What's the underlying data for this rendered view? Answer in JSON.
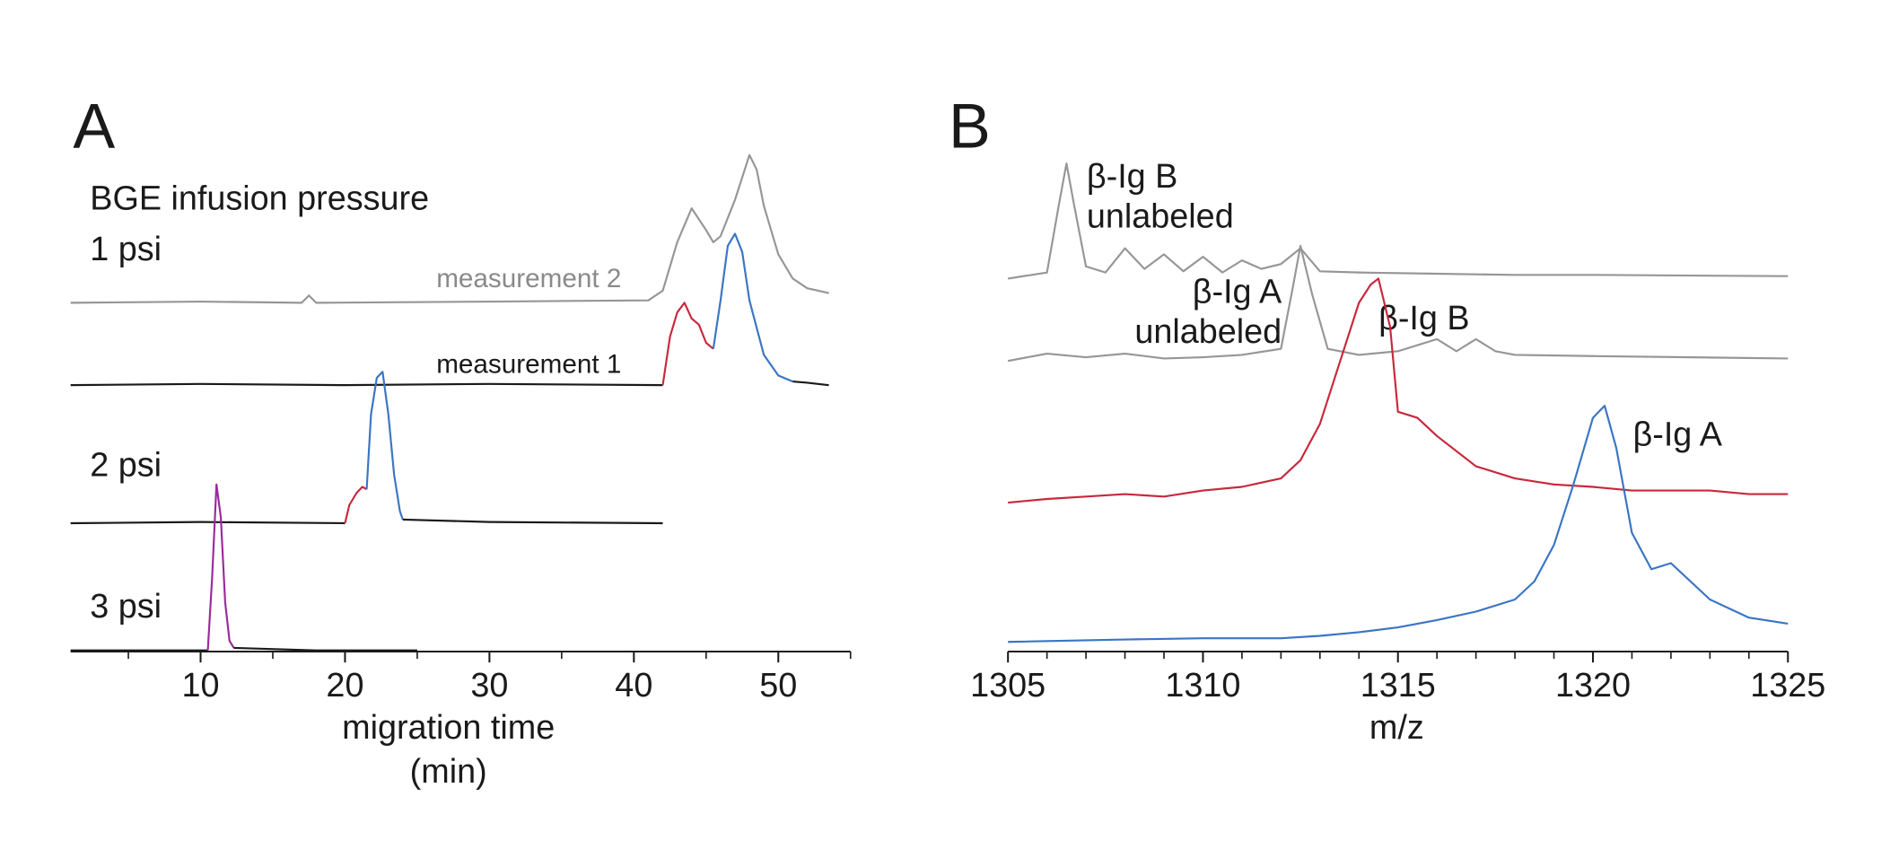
{
  "chart_data": [
    {
      "type": "line",
      "panel": "A",
      "xlabel": [
        "migration time",
        "(min)"
      ],
      "xlim": [
        1,
        55
      ],
      "xticks": [
        10,
        20,
        30,
        40,
        50
      ],
      "xminorticks": [
        5,
        15,
        25,
        35,
        45,
        55
      ],
      "annotations": [
        "BGE infusion pressure",
        "1 psi",
        "2 psi",
        "3 psi"
      ],
      "series": [
        {
          "name": "measurement 2",
          "color": "#969696",
          "x": [
            1,
            10,
            17,
            17.5,
            18,
            30,
            41,
            42,
            43,
            44,
            45,
            45.5,
            46,
            47,
            48,
            48.5,
            49,
            50,
            51,
            52,
            53.5
          ],
          "values": [
            0,
            1,
            0,
            6,
            0,
            1,
            2,
            10,
            50,
            78,
            60,
            50,
            55,
            85,
            122,
            110,
            80,
            40,
            20,
            12,
            8
          ]
        },
        {
          "name": "measurement 1",
          "color": "#1a1a1a",
          "x": [
            1,
            10,
            20,
            30,
            42
          ],
          "values": [
            0,
            1,
            0,
            1,
            0
          ]
        },
        {
          "color": "#c8283c",
          "x": [
            42,
            42.5,
            43,
            43.5,
            44,
            44.5,
            45,
            45.5
          ],
          "values": [
            0,
            40,
            60,
            68,
            55,
            50,
            35,
            30
          ]
        },
        {
          "color": "#3a75c4",
          "x": [
            45.5,
            46,
            46.5,
            47,
            47.5,
            48,
            49,
            50,
            51
          ],
          "values": [
            30,
            70,
            115,
            125,
            110,
            70,
            25,
            8,
            3
          ]
        },
        {
          "color": "#1a1a1a",
          "x": [
            51,
            52,
            53.5
          ],
          "values": [
            3,
            2,
            0
          ]
        },
        {
          "color": "#1a1a1a",
          "x": [
            1,
            10,
            20
          ],
          "values": [
            0,
            1,
            0
          ]
        },
        {
          "color": "#c8283c",
          "x": [
            20,
            20.3,
            20.8,
            21.2,
            21.5
          ],
          "values": [
            0,
            15,
            25,
            30,
            28
          ]
        },
        {
          "color": "#3a75c4",
          "x": [
            21.5,
            21.8,
            22.2,
            22.6,
            23,
            23.4,
            23.8,
            24
          ],
          "values": [
            28,
            90,
            120,
            125,
            90,
            40,
            10,
            3
          ]
        },
        {
          "color": "#1a1a1a",
          "x": [
            24,
            30,
            42
          ],
          "values": [
            3,
            1,
            0
          ]
        },
        {
          "color": "#1a1a1a",
          "x": [
            1,
            10.5
          ],
          "values": [
            0,
            0
          ]
        },
        {
          "color": "#9b2a9b",
          "x": [
            10.5,
            10.8,
            11.1,
            11.4,
            11.7,
            12,
            12.3
          ],
          "values": [
            0,
            60,
            137,
            110,
            40,
            8,
            2
          ]
        },
        {
          "color": "#1a1a1a",
          "x": [
            12.3,
            18,
            25
          ],
          "values": [
            2,
            0,
            0
          ]
        }
      ]
    },
    {
      "type": "line",
      "panel": "B",
      "xlabel": [
        "m/z"
      ],
      "xlim": [
        1305,
        1325
      ],
      "xticks": [
        1305,
        1310,
        1315,
        1320,
        1325
      ],
      "xminorticks": [
        1306,
        1307,
        1308,
        1309,
        1311,
        1312,
        1313,
        1314,
        1316,
        1317,
        1318,
        1319,
        1321,
        1322,
        1323,
        1324
      ],
      "annotations": [
        "β-Ig B",
        "unlabeled",
        "β-Ig A",
        "unlabeled",
        "β-Ig B",
        "β-Ig A"
      ],
      "series": [
        {
          "color": "#969696",
          "x": [
            1305,
            1306,
            1306.3,
            1306.5,
            1306.7,
            1307,
            1307.5,
            1308,
            1308.5,
            1309,
            1309.5,
            1310,
            1310.5,
            1311,
            1311.5,
            1312,
            1312.5,
            1313,
            1314,
            1316,
            1318,
            1320,
            1325
          ],
          "values": [
            0,
            5,
            60,
            95,
            60,
            10,
            5,
            25,
            8,
            20,
            6,
            18,
            5,
            15,
            8,
            12,
            25,
            6,
            5,
            4,
            3,
            3,
            2
          ]
        },
        {
          "color": "#969696",
          "x": [
            1305,
            1306,
            1307,
            1308,
            1309,
            1310,
            1311,
            1312,
            1312.3,
            1312.5,
            1312.8,
            1313.2,
            1314,
            1315,
            1316,
            1316.5,
            1317,
            1317.5,
            1318,
            1320,
            1325
          ],
          "values": [
            0,
            6,
            3,
            6,
            2,
            3,
            5,
            10,
            60,
            95,
            55,
            10,
            5,
            8,
            18,
            8,
            18,
            8,
            5,
            4,
            2
          ]
        },
        {
          "color": "#c8283c",
          "x": [
            1305,
            1306,
            1307,
            1308,
            1309,
            1310,
            1311,
            1312,
            1312.5,
            1313,
            1313.5,
            1314,
            1314.3,
            1314.5,
            1314.8,
            1315,
            1315.5,
            1316,
            1317,
            1318,
            1319,
            1320,
            1321,
            1322,
            1323,
            1324,
            1325
          ],
          "values": [
            5,
            8,
            10,
            12,
            10,
            15,
            18,
            25,
            40,
            70,
            120,
            170,
            185,
            190,
            150,
            80,
            75,
            60,
            35,
            25,
            20,
            18,
            15,
            15,
            15,
            12,
            12
          ]
        },
        {
          "color": "#3a75c4",
          "x": [
            1305,
            1308,
            1310,
            1312,
            1313,
            1314,
            1315,
            1316,
            1317,
            1318,
            1318.5,
            1319,
            1319.5,
            1320,
            1320.3,
            1320.6,
            1321,
            1321.5,
            1322,
            1323,
            1324,
            1325
          ],
          "values": [
            0,
            2,
            3,
            3,
            5,
            8,
            12,
            18,
            25,
            35,
            50,
            80,
            130,
            185,
            195,
            160,
            90,
            60,
            65,
            35,
            20,
            15
          ]
        }
      ]
    }
  ]
}
